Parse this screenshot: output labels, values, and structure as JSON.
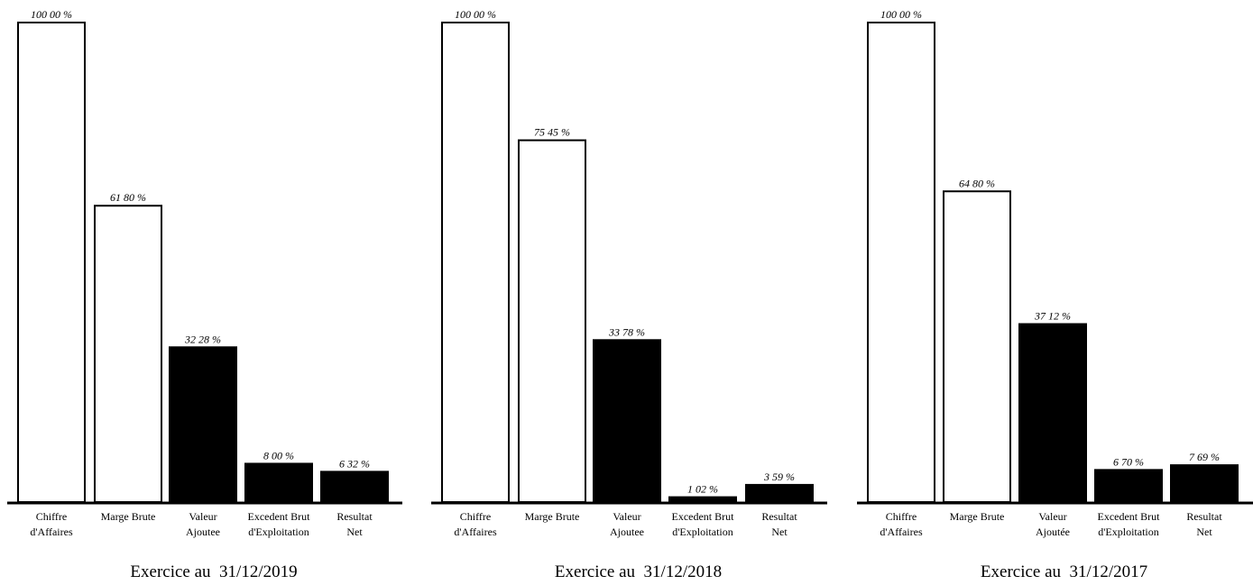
{
  "chart_data": [
    {
      "type": "bar",
      "title": "Exercice au  31/12/2019",
      "categories": [
        [
          "Chiffre",
          "d'Affaires"
        ],
        [
          "Marge Brute"
        ],
        [
          "Valeur",
          "Ajoutee"
        ],
        [
          "Excedent Brut",
          "d'Exploitation"
        ],
        [
          "Resultat",
          "Net"
        ]
      ],
      "values": [
        100.0,
        61.8,
        32.28,
        8.0,
        6.32
      ],
      "value_labels": [
        "100 00 %",
        "61 80 %",
        "32 28 %",
        "8 00 %",
        "6 32 %"
      ],
      "bar_colors": [
        "#ffffff",
        "#ffffff",
        "#000000",
        "#000000",
        "#000000"
      ],
      "ylim": [
        0,
        100
      ]
    },
    {
      "type": "bar",
      "title": "Exercice au  31/12/2018",
      "categories": [
        [
          "Chiffre",
          "d'Affaires"
        ],
        [
          "Marge Brute"
        ],
        [
          "Valeur",
          "Ajoutee"
        ],
        [
          "Excedent Brut",
          "d'Exploitation"
        ],
        [
          "Resultat",
          "Net"
        ]
      ],
      "values": [
        100.0,
        75.45,
        33.78,
        1.02,
        3.59
      ],
      "value_labels": [
        "100 00 %",
        "75 45 %",
        "33 78 %",
        "1 02 %",
        "3 59 %"
      ],
      "bar_colors": [
        "#ffffff",
        "#ffffff",
        "#000000",
        "#000000",
        "#000000"
      ],
      "ylim": [
        0,
        100
      ]
    },
    {
      "type": "bar",
      "title": "Exercice au  31/12/2017",
      "categories": [
        [
          "Chiffre",
          "d'Affaires"
        ],
        [
          "Marge Brute"
        ],
        [
          "Valeur",
          "Ajoutée"
        ],
        [
          "Excedent Brut",
          "d'Exploitation"
        ],
        [
          "Resultat",
          "Net"
        ]
      ],
      "values": [
        100.0,
        64.8,
        37.12,
        6.7,
        7.69
      ],
      "value_labels": [
        "100 00 %",
        "64 80 %",
        "37 12 %",
        "6 70 %",
        "7 69 %"
      ],
      "bar_colors": [
        "#ffffff",
        "#ffffff",
        "#000000",
        "#000000",
        "#000000"
      ],
      "ylim": [
        0,
        100
      ]
    }
  ]
}
